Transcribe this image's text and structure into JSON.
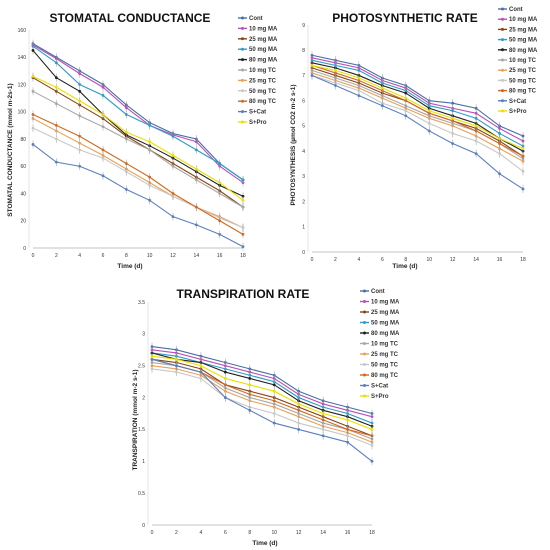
{
  "chart_data": [
    {
      "type": "line",
      "title": "STOMATAL CONDUCTANCE",
      "xlabel": "Time (d)",
      "ylabel": "STOMATAL CONDUCTANCE (mmol m-2s-1)",
      "x": [
        0,
        2,
        4,
        6,
        8,
        10,
        12,
        14,
        16,
        18
      ],
      "xlim": [
        0,
        18
      ],
      "ylim": [
        0,
        160
      ],
      "yticks": [
        0,
        20,
        40,
        60,
        80,
        100,
        120,
        140,
        160
      ],
      "legend_position": "right",
      "series": [
        {
          "name": "Cont",
          "color": "#4a6fa5",
          "values": [
            150,
            140,
            130,
            120,
            105,
            92,
            84,
            80,
            62,
            50
          ]
        },
        {
          "name": "10 mg MA",
          "color": "#b94fb9",
          "values": [
            149,
            139,
            128,
            118,
            103,
            90,
            83,
            78,
            60,
            48
          ]
        },
        {
          "name": "25 mg MA",
          "color": "#8b4513",
          "values": [
            125,
            115,
            105,
            95,
            82,
            72,
            62,
            52,
            42,
            30
          ]
        },
        {
          "name": "50 mg MA",
          "color": "#2e9cc7",
          "values": [
            148,
            136,
            120,
            112,
            98,
            90,
            82,
            72,
            62,
            50
          ]
        },
        {
          "name": "80 mg MA",
          "color": "#222222",
          "values": [
            145,
            125,
            115,
            98,
            83,
            75,
            66,
            56,
            46,
            38
          ]
        },
        {
          "name": "10 mg TC",
          "color": "#a8a8a8",
          "values": [
            115,
            106,
            97,
            89,
            80,
            72,
            60,
            50,
            40,
            30
          ]
        },
        {
          "name": "25 mg TC",
          "color": "#e8a05a",
          "values": [
            95,
            86,
            77,
            68,
            58,
            48,
            38,
            30,
            23,
            15
          ]
        },
        {
          "name": "50 mg TC",
          "color": "#c8c8c8",
          "values": [
            88,
            80,
            72,
            66,
            56,
            46,
            38,
            30,
            22,
            15
          ]
        },
        {
          "name": "80 mg TC",
          "color": "#d2691e",
          "values": [
            98,
            90,
            82,
            72,
            62,
            52,
            40,
            30,
            20,
            10
          ]
        },
        {
          "name": "S+Cat",
          "color": "#5a7fc0",
          "values": [
            76,
            63,
            60,
            53,
            43,
            35,
            23,
            17,
            10,
            1
          ]
        },
        {
          "name": "S+Pro",
          "color": "#e8e000",
          "values": [
            126,
            118,
            108,
            98,
            85,
            78,
            68,
            58,
            48,
            35
          ]
        }
      ]
    },
    {
      "type": "line",
      "title": "PHOTOSYNTHETIC RATE",
      "xlabel": "Time (d)",
      "ylabel": "PHOTOSYNTHESIS (µmol CO2 m-2 s-1)",
      "x": [
        0,
        2,
        4,
        6,
        8,
        10,
        12,
        14,
        16,
        18
      ],
      "xlim": [
        0,
        18
      ],
      "ylim": [
        0,
        9
      ],
      "yticks": [
        0,
        1,
        2,
        3,
        4,
        5,
        6,
        7,
        8,
        9
      ],
      "legend_position": "right",
      "series": [
        {
          "name": "Cont",
          "color": "#4a6fa5",
          "values": [
            7.8,
            7.6,
            7.4,
            6.9,
            6.6,
            6.0,
            5.9,
            5.7,
            5.0,
            4.6
          ]
        },
        {
          "name": "10 mg MA",
          "color": "#b94fb9",
          "values": [
            7.7,
            7.5,
            7.3,
            6.8,
            6.5,
            5.9,
            5.7,
            5.5,
            4.9,
            4.4
          ]
        },
        {
          "name": "25 mg MA",
          "color": "#8b4513",
          "values": [
            7.3,
            7.0,
            6.7,
            6.3,
            6.0,
            5.5,
            5.2,
            4.9,
            4.4,
            3.8
          ]
        },
        {
          "name": "50 mg MA",
          "color": "#2e9cc7",
          "values": [
            7.6,
            7.4,
            7.2,
            6.7,
            6.4,
            5.8,
            5.6,
            5.3,
            4.7,
            4.2
          ]
        },
        {
          "name": "80 mg MA",
          "color": "#222222",
          "values": [
            7.5,
            7.3,
            7.0,
            6.6,
            6.3,
            5.7,
            5.4,
            5.1,
            4.5,
            4.0
          ]
        },
        {
          "name": "10 mg TC",
          "color": "#a8a8a8",
          "values": [
            7.2,
            6.9,
            6.6,
            6.2,
            5.8,
            5.4,
            5.1,
            4.8,
            4.3,
            3.7
          ]
        },
        {
          "name": "25 mg TC",
          "color": "#e8a05a",
          "values": [
            7.1,
            6.8,
            6.5,
            6.1,
            5.7,
            5.3,
            5.0,
            4.6,
            4.1,
            3.6
          ]
        },
        {
          "name": "50 mg TC",
          "color": "#c8c8c8",
          "values": [
            7.0,
            6.7,
            6.4,
            5.9,
            5.6,
            5.1,
            4.7,
            4.4,
            3.9,
            3.2
          ]
        },
        {
          "name": "80 mg TC",
          "color": "#d2691e",
          "values": [
            7.4,
            7.1,
            6.8,
            6.4,
            6.0,
            5.5,
            5.2,
            4.8,
            4.3,
            3.8
          ]
        },
        {
          "name": "S+Cat",
          "color": "#5a7fc0",
          "values": [
            7.0,
            6.6,
            6.2,
            5.8,
            5.4,
            4.8,
            4.3,
            3.9,
            3.1,
            2.5
          ]
        },
        {
          "name": "S+Pro",
          "color": "#e8e000",
          "values": [
            7.4,
            7.2,
            6.9,
            6.5,
            6.1,
            5.6,
            5.3,
            5.0,
            4.5,
            4.1
          ]
        }
      ]
    },
    {
      "type": "line",
      "title": "TRANSPIRATION RATE",
      "xlabel": "Time (d)",
      "ylabel": "TRANSPIRATION (mmol m-2 s-1)",
      "x": [
        0,
        2,
        4,
        6,
        8,
        10,
        12,
        14,
        16,
        18
      ],
      "xlim": [
        0,
        18
      ],
      "ylim": [
        0,
        3.5
      ],
      "yticks": [
        0,
        0.5,
        1,
        1.5,
        2,
        2.5,
        3,
        3.5
      ],
      "legend_position": "right",
      "series": [
        {
          "name": "Cont",
          "color": "#4a6fa5",
          "values": [
            2.8,
            2.75,
            2.65,
            2.55,
            2.45,
            2.35,
            2.1,
            1.95,
            1.85,
            1.75
          ]
        },
        {
          "name": "10 mg MA",
          "color": "#b94fb9",
          "values": [
            2.75,
            2.7,
            2.6,
            2.5,
            2.4,
            2.3,
            2.05,
            1.9,
            1.8,
            1.7
          ]
        },
        {
          "name": "25 mg MA",
          "color": "#8b4513",
          "values": [
            2.6,
            2.55,
            2.45,
            2.2,
            2.1,
            2.0,
            1.85,
            1.7,
            1.55,
            1.4
          ]
        },
        {
          "name": "50 mg MA",
          "color": "#2e9cc7",
          "values": [
            2.7,
            2.65,
            2.55,
            2.45,
            2.35,
            2.25,
            2.0,
            1.85,
            1.75,
            1.6
          ]
        },
        {
          "name": "80 mg MA",
          "color": "#222222",
          "values": [
            2.7,
            2.6,
            2.55,
            2.4,
            2.3,
            2.2,
            1.95,
            1.8,
            1.7,
            1.55
          ]
        },
        {
          "name": "10 mg TC",
          "color": "#a8a8a8",
          "values": [
            2.55,
            2.5,
            2.4,
            2.15,
            2.0,
            1.9,
            1.75,
            1.6,
            1.5,
            1.35
          ]
        },
        {
          "name": "25 mg TC",
          "color": "#e8a05a",
          "values": [
            2.5,
            2.45,
            2.35,
            2.1,
            1.95,
            1.85,
            1.7,
            1.55,
            1.45,
            1.3
          ]
        },
        {
          "name": "50 mg TC",
          "color": "#c8c8c8",
          "values": [
            2.45,
            2.4,
            2.3,
            2.0,
            1.85,
            1.75,
            1.6,
            1.5,
            1.4,
            1.25
          ]
        },
        {
          "name": "80 mg TC",
          "color": "#d2691e",
          "values": [
            2.6,
            2.5,
            2.4,
            2.2,
            2.05,
            1.95,
            1.8,
            1.65,
            1.5,
            1.4
          ]
        },
        {
          "name": "S+Cat",
          "color": "#5a7fc0",
          "values": [
            2.6,
            2.5,
            2.4,
            2.0,
            1.8,
            1.6,
            1.5,
            1.4,
            1.3,
            1.0
          ]
        },
        {
          "name": "S+Pro",
          "color": "#e8e000",
          "values": [
            2.65,
            2.6,
            2.5,
            2.3,
            2.2,
            2.1,
            1.9,
            1.75,
            1.65,
            1.5
          ]
        }
      ]
    }
  ]
}
